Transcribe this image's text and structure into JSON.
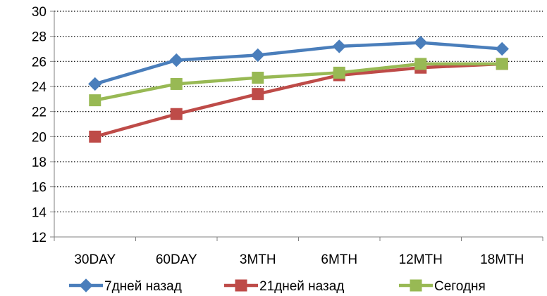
{
  "chart_data": {
    "type": "line",
    "categories": [
      "30DAY",
      "60DAY",
      "3MTH",
      "6MTH",
      "12MTH",
      "18MTH"
    ],
    "ylim": [
      12,
      30
    ],
    "ytick_step": 2,
    "grid": true,
    "legend_position": "bottom",
    "series": [
      {
        "name": "7дней назад",
        "values": [
          24.2,
          26.1,
          26.5,
          27.2,
          27.5,
          27.0
        ],
        "color": "#4a7ebb",
        "marker": "diamond"
      },
      {
        "name": "21дней назад",
        "values": [
          20.0,
          21.8,
          23.4,
          24.9,
          25.5,
          25.8
        ],
        "color": "#be4b48",
        "marker": "square"
      },
      {
        "name": "Сегодня",
        "values": [
          22.9,
          24.2,
          24.7,
          25.1,
          25.8,
          25.8
        ],
        "color": "#98b954",
        "marker": "square"
      }
    ]
  }
}
